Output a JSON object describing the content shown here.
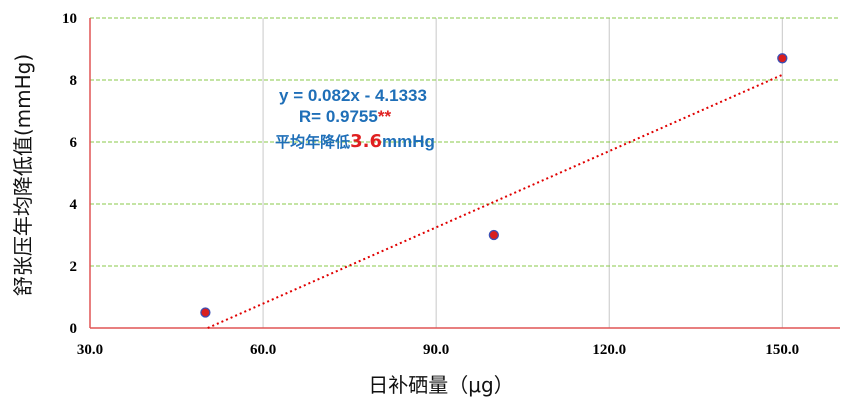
{
  "chart_data": {
    "type": "scatter",
    "xlabel": "日补硒量（μg）",
    "ylabel": "舒张压年均降低值(mmHg)",
    "xlim": [
      30,
      160
    ],
    "ylim": [
      0,
      10
    ],
    "x_ticks": [
      "30.0",
      "60.0",
      "90.0",
      "120.0",
      "150.0"
    ],
    "x_tick_values": [
      30,
      60,
      90,
      120,
      150
    ],
    "y_ticks": [
      "0",
      "2",
      "4",
      "6",
      "8",
      "10"
    ],
    "y_tick_values": [
      0,
      2,
      4,
      6,
      8,
      10
    ],
    "series": [
      {
        "x": [
          50,
          100,
          150
        ],
        "y": [
          0.5,
          3.0,
          8.7
        ]
      }
    ],
    "trendline": {
      "slope": 0.082,
      "intercept": -4.1333,
      "x_range": [
        50,
        150
      ],
      "style": "dotted"
    },
    "annotation": {
      "equation": "y = 0.082x - 4.1333",
      "r_prefix": "R= 0.9755",
      "r_sig": "**",
      "avg_prefix": "平均年降低",
      "avg_value": "3.6",
      "avg_unit": "mmHg"
    },
    "grid": true,
    "colors": {
      "axis": "#e05555",
      "h_grid": "#88c84a",
      "v_grid": "#c8c8c8",
      "point_fill": "#d91e1e",
      "point_stroke": "#3b4fb5",
      "trendline": "#e00000",
      "annotation": "#1f6fb8",
      "highlight": "#e02020"
    }
  }
}
